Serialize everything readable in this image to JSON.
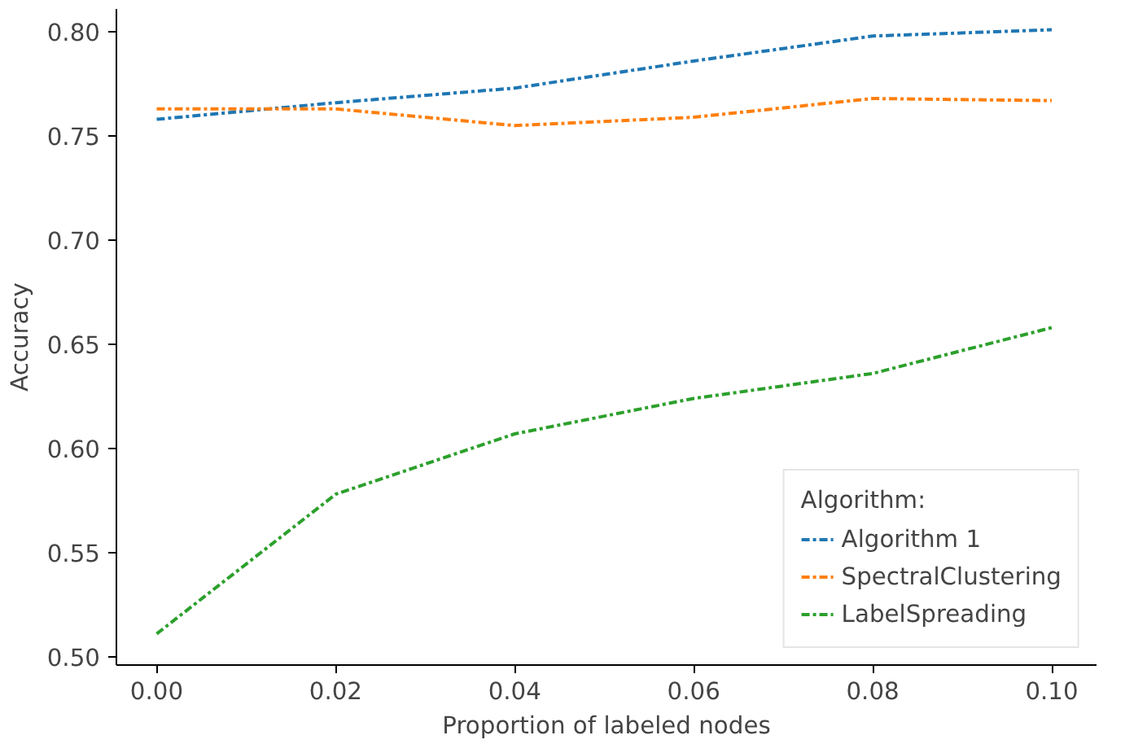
{
  "chart_data": {
    "type": "line",
    "xlabel": "Proportion of labeled nodes",
    "ylabel": "Accuracy",
    "legend_title": "Algorithm:",
    "x": [
      0.0,
      0.02,
      0.04,
      0.06,
      0.08,
      0.1
    ],
    "series": [
      {
        "name": "Algorithm 1",
        "color": "#1f77b4",
        "values": [
          0.758,
          0.766,
          0.773,
          0.786,
          0.798,
          0.801
        ]
      },
      {
        "name": "SpectralClustering",
        "color": "#ff7f0e",
        "values": [
          0.763,
          0.763,
          0.755,
          0.759,
          0.768,
          0.767
        ]
      },
      {
        "name": "LabelSpreading",
        "color": "#2ca02c",
        "values": [
          0.511,
          0.578,
          0.607,
          0.624,
          0.636,
          0.658
        ]
      }
    ],
    "xlim": [
      -0.0045,
      0.105
    ],
    "ylim": [
      0.496,
      0.811
    ],
    "xticks": [
      {
        "value": 0,
        "label": "0.00"
      },
      {
        "value": 0.02,
        "label": "0.02"
      },
      {
        "value": 0.04,
        "label": "0.04"
      },
      {
        "value": 0.06,
        "label": "0.06"
      },
      {
        "value": 0.08,
        "label": "0.08"
      },
      {
        "value": 0.1,
        "label": "0.10"
      }
    ],
    "yticks": [
      {
        "value": 0.5,
        "label": "0.50"
      },
      {
        "value": 0.55,
        "label": "0.55"
      },
      {
        "value": 0.6,
        "label": "0.60"
      },
      {
        "value": 0.65,
        "label": "0.65"
      },
      {
        "value": 0.7,
        "label": "0.70"
      },
      {
        "value": 0.75,
        "label": "0.75"
      },
      {
        "value": 0.8,
        "label": "0.80"
      }
    ],
    "legend": "bottom right",
    "grid": false,
    "line_style": "dashed",
    "marker": "none"
  }
}
